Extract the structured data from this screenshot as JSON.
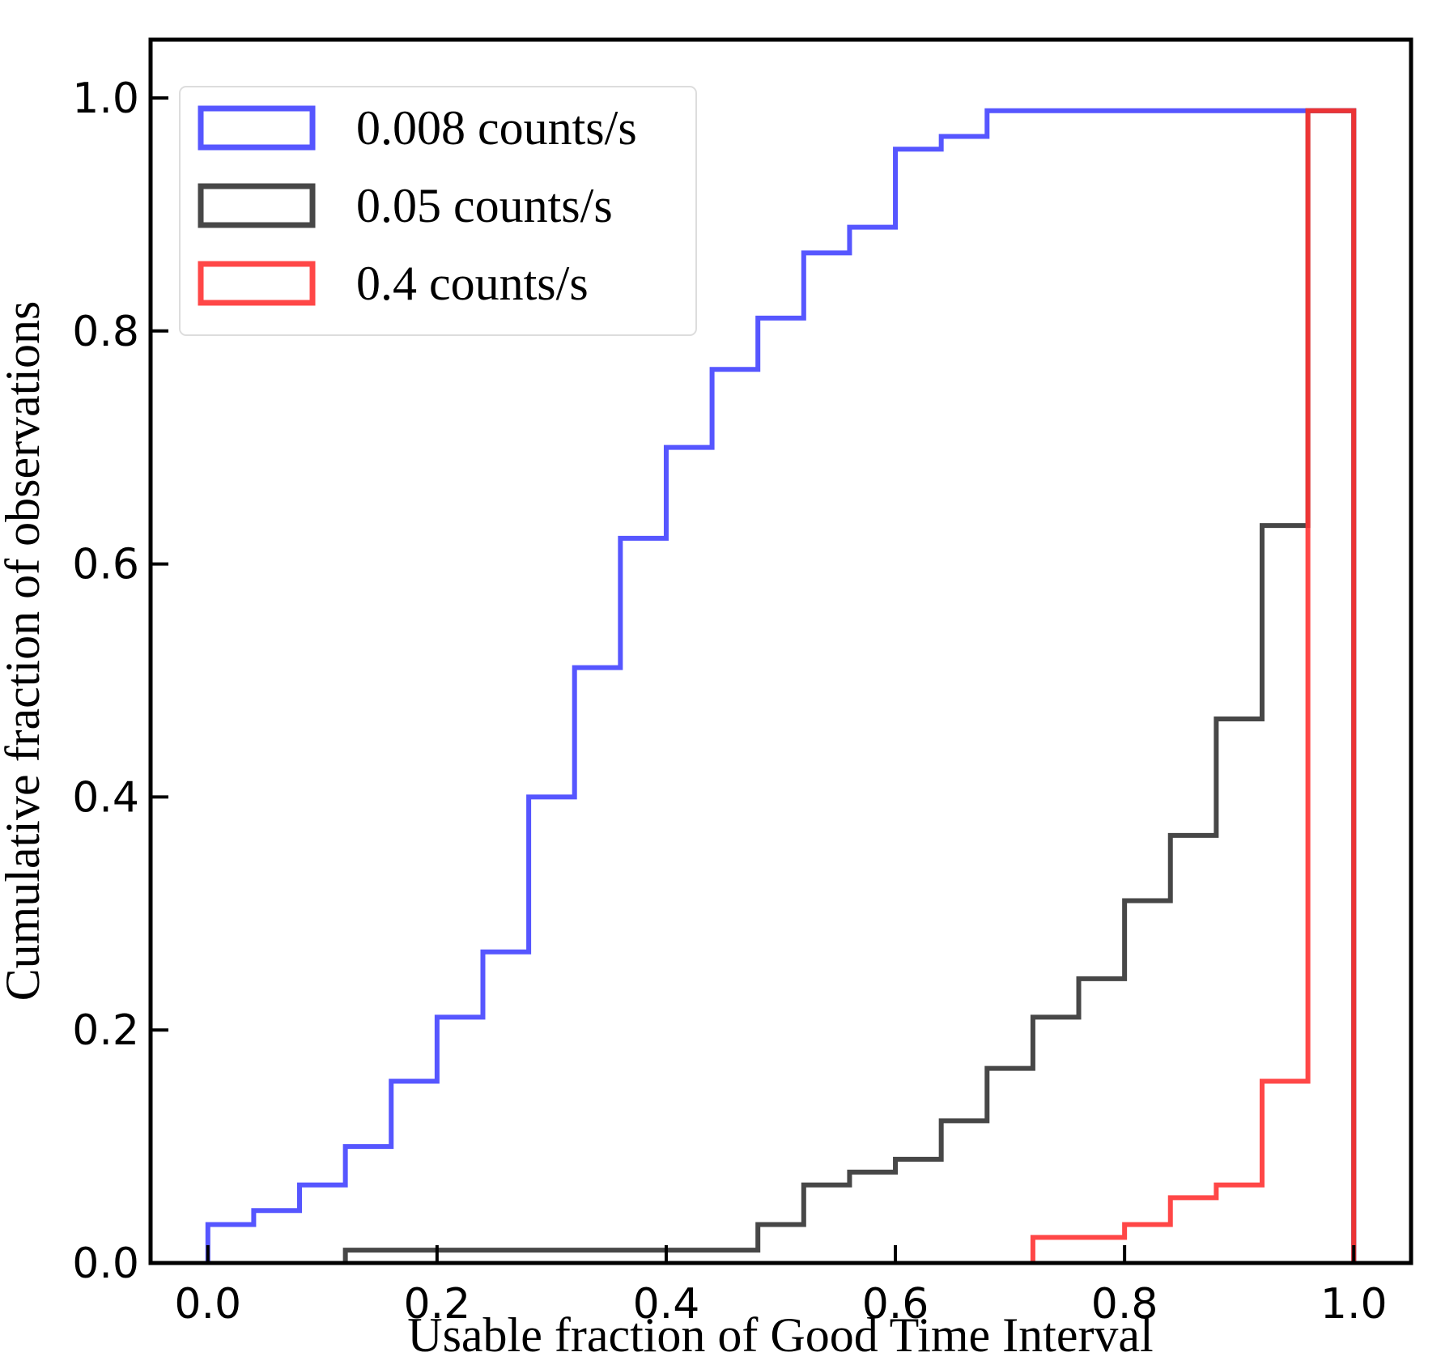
{
  "chart_data": {
    "type": "step",
    "xlabel": "Usable fraction of Good Time Interval",
    "ylabel": "Cumulative fraction of observations",
    "xlim": [
      -0.05,
      1.05
    ],
    "ylim": [
      0,
      1.05
    ],
    "xticks": [
      "0.0",
      "0.2",
      "0.4",
      "0.6",
      "0.8",
      "1.0"
    ],
    "yticks": [
      "0.0",
      "0.2",
      "0.4",
      "0.6",
      "0.8",
      "1.0"
    ],
    "grid": false,
    "legend_position": "top-left",
    "series": [
      {
        "name": "0.008 counts/s",
        "color": "#4444ff",
        "edges": [
          0.0,
          0.04,
          0.08,
          0.12,
          0.16,
          0.2,
          0.24,
          0.28,
          0.32,
          0.36,
          0.4,
          0.44,
          0.48,
          0.52,
          0.56,
          0.6,
          0.64,
          0.68,
          0.72,
          0.76,
          0.8,
          0.84,
          0.88,
          0.92,
          0.96,
          1.0
        ],
        "values": [
          0.033,
          0.045,
          0.067,
          0.1,
          0.156,
          0.211,
          0.267,
          0.4,
          0.511,
          0.622,
          0.7,
          0.767,
          0.811,
          0.867,
          0.889,
          0.956,
          0.967,
          0.989,
          0.989,
          0.989,
          0.989,
          0.989,
          0.989,
          0.989,
          0.989
        ]
      },
      {
        "name": "0.05 counts/s",
        "color": "#333333",
        "edges": [
          0.12,
          0.16,
          0.2,
          0.24,
          0.28,
          0.32,
          0.36,
          0.4,
          0.44,
          0.48,
          0.52,
          0.56,
          0.6,
          0.64,
          0.68,
          0.72,
          0.76,
          0.8,
          0.84,
          0.88,
          0.92,
          0.96,
          1.0
        ],
        "values": [
          0.011,
          0.011,
          0.011,
          0.011,
          0.011,
          0.011,
          0.011,
          0.011,
          0.011,
          0.033,
          0.067,
          0.078,
          0.089,
          0.122,
          0.167,
          0.211,
          0.244,
          0.311,
          0.367,
          0.467,
          0.633,
          0.989
        ]
      },
      {
        "name": "0.4 counts/s",
        "color": "#ff3333",
        "edges": [
          0.72,
          0.76,
          0.8,
          0.84,
          0.88,
          0.92,
          0.96,
          1.0
        ],
        "values": [
          0.022,
          0.022,
          0.033,
          0.056,
          0.067,
          0.156,
          0.989
        ]
      }
    ]
  }
}
